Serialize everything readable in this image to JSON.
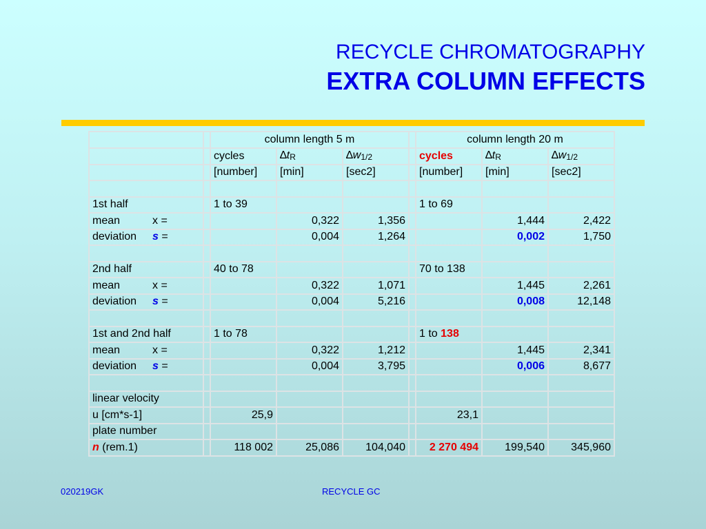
{
  "title": {
    "line1": "RECYCLE CHROMATOGRAPHY",
    "line2": "EXTRA COLUMN EFFECTS"
  },
  "colors": {
    "accent": "#0000e6",
    "highlight": "#e60000",
    "rule": "#ffcc00"
  },
  "table": {
    "group_headers": [
      "column length 5 m",
      "column length 20 m"
    ],
    "col_headers": {
      "cycles_5": "cycles",
      "cycles_20": "cycles",
      "delta": "∆",
      "t": "t",
      "t_sub": "R",
      "w": "w",
      "w_sub": "1/2"
    },
    "units": [
      "[number]",
      "[min]",
      "[sec2]",
      "[number]",
      "[min]",
      "[sec2]"
    ],
    "labels": {
      "mean": "mean",
      "x_eq": "x =",
      "deviation": "deviation",
      "s": "s",
      "eq": "="
    },
    "half1": {
      "label": "1st half",
      "cycles5": "1 to 39",
      "cycles20": "1 to 69",
      "mean": [
        "0,322",
        "1,356",
        "1,444",
        "2,422"
      ],
      "dev": [
        "0,004",
        "1,264",
        "0,002",
        "1,750"
      ]
    },
    "half2": {
      "label": "2nd half",
      "cycles5": "40 to 78",
      "cycles20": "70 to 138",
      "mean": [
        "0,322",
        "1,071",
        "1,445",
        "2,261"
      ],
      "dev": [
        "0,004",
        "5,216",
        "0,008",
        "12,148"
      ]
    },
    "both": {
      "label": "1st and 2nd half",
      "cycles5": "1 to 78",
      "cycles20_pre": "1 to ",
      "cycles20_hl": "138",
      "mean": [
        "0,322",
        "1,212",
        "1,445",
        "2,341"
      ],
      "dev": [
        "0,004",
        "3,795",
        "0,006",
        "8,677"
      ]
    },
    "velocity": {
      "label": "linear velocity",
      "unit_label": "u [cm*s-1]",
      "v5": "25,9",
      "v20": "23,1"
    },
    "plate": {
      "label": "plate number",
      "n": "n",
      "rem": "(rem.1)",
      "v5": [
        "118 002",
        "25,086",
        "104,040"
      ],
      "v20": [
        "2 270 494",
        "199,540",
        "345,960"
      ]
    }
  },
  "footer": {
    "left": "020219GK",
    "center": "RECYCLE GC"
  }
}
